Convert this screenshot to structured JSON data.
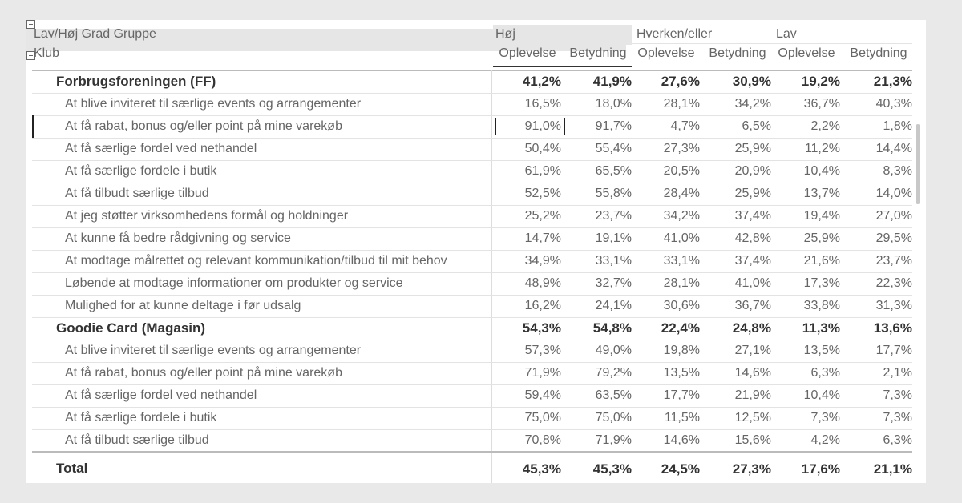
{
  "header": {
    "group_label": "Lav/Høj Grad Gruppe",
    "row_label": "Klub",
    "groups": [
      "Høj",
      "Hverken/eller",
      "Lav"
    ],
    "measures": [
      "Oplevelse",
      "Betydning",
      "Oplevelse",
      "Betydning",
      "Oplevelse",
      "Betydning"
    ]
  },
  "groups": [
    {
      "name": "Forbrugsforeningen (FF)",
      "values": [
        "41,2%",
        "41,9%",
        "27,6%",
        "30,9%",
        "19,2%",
        "21,3%"
      ],
      "rows": [
        {
          "label": "At blive inviteret til særlige events og arrangementer",
          "values": [
            "16,5%",
            "18,0%",
            "28,1%",
            "34,2%",
            "36,7%",
            "40,3%"
          ]
        },
        {
          "label": "At få rabat, bonus og/eller point på mine varekøb",
          "values": [
            "91,0%",
            "91,7%",
            "4,7%",
            "6,5%",
            "2,2%",
            "1,8%"
          ]
        },
        {
          "label": "At få særlige fordel ved nethandel",
          "values": [
            "50,4%",
            "55,4%",
            "27,3%",
            "25,9%",
            "11,2%",
            "14,4%"
          ]
        },
        {
          "label": "At få særlige fordele i butik",
          "values": [
            "61,9%",
            "65,5%",
            "20,5%",
            "20,9%",
            "10,4%",
            "8,3%"
          ]
        },
        {
          "label": "At få tilbudt særlige tilbud",
          "values": [
            "52,5%",
            "55,8%",
            "28,4%",
            "25,9%",
            "13,7%",
            "14,0%"
          ]
        },
        {
          "label": "At jeg støtter virksomhedens formål og holdninger",
          "values": [
            "25,2%",
            "23,7%",
            "34,2%",
            "37,4%",
            "19,4%",
            "27,0%"
          ]
        },
        {
          "label": "At kunne få bedre rådgivning og service",
          "values": [
            "14,7%",
            "19,1%",
            "41,0%",
            "42,8%",
            "25,9%",
            "29,5%"
          ]
        },
        {
          "label": "At modtage målrettet og relevant kommunikation/tilbud til mit behov",
          "values": [
            "34,9%",
            "33,1%",
            "33,1%",
            "37,4%",
            "21,6%",
            "23,7%"
          ]
        },
        {
          "label": "Løbende at modtage informationer om produkter og service",
          "values": [
            "48,9%",
            "32,7%",
            "28,1%",
            "41,0%",
            "17,3%",
            "22,3%"
          ]
        },
        {
          "label": "Mulighed for at kunne deltage i før udsalg",
          "values": [
            "16,2%",
            "24,1%",
            "30,6%",
            "36,7%",
            "33,8%",
            "31,3%"
          ]
        }
      ]
    },
    {
      "name": "Goodie Card (Magasin)",
      "values": [
        "54,3%",
        "54,8%",
        "22,4%",
        "24,8%",
        "11,3%",
        "13,6%"
      ],
      "rows": [
        {
          "label": "At blive inviteret til særlige events og arrangementer",
          "values": [
            "57,3%",
            "49,0%",
            "19,8%",
            "27,1%",
            "13,5%",
            "17,7%"
          ]
        },
        {
          "label": "At få rabat, bonus og/eller point på mine varekøb",
          "values": [
            "71,9%",
            "79,2%",
            "13,5%",
            "14,6%",
            "6,3%",
            "2,1%"
          ]
        },
        {
          "label": "At få særlige fordel ved nethandel",
          "values": [
            "59,4%",
            "63,5%",
            "17,7%",
            "21,9%",
            "10,4%",
            "7,3%"
          ]
        },
        {
          "label": "At få særlige fordele i butik",
          "values": [
            "75,0%",
            "75,0%",
            "11,5%",
            "12,5%",
            "7,3%",
            "7,3%"
          ]
        },
        {
          "label": "At få tilbudt særlige tilbud",
          "values": [
            "70,8%",
            "71,9%",
            "14,6%",
            "15,6%",
            "4,2%",
            "6,3%"
          ]
        }
      ]
    }
  ],
  "total": {
    "label": "Total",
    "values": [
      "45,3%",
      "45,3%",
      "24,5%",
      "27,3%",
      "17,6%",
      "21,1%"
    ]
  }
}
